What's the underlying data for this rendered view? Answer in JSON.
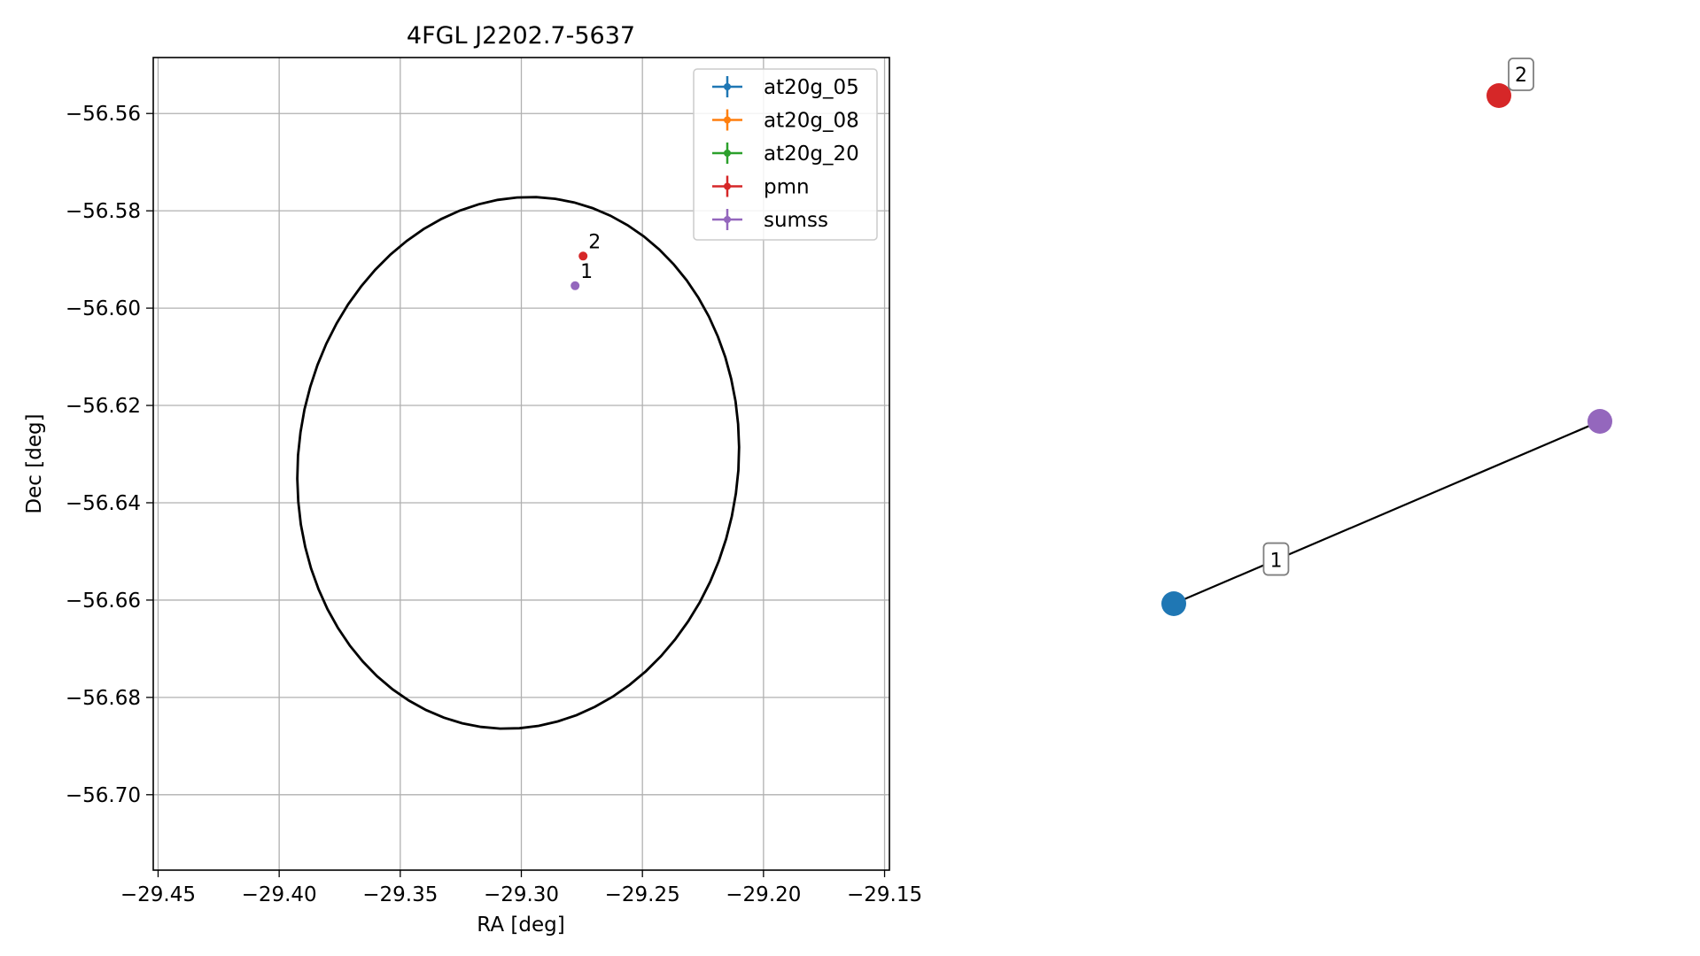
{
  "chart_data": [
    {
      "type": "scatter",
      "title": "4FGL J2202.7-5637",
      "xlabel": "RA [deg]",
      "ylabel": "Dec [deg]",
      "xlim": [
        -29.452,
        -29.148
      ],
      "ylim": [
        -56.7155,
        -56.5485
      ],
      "xticks": [
        -29.45,
        -29.4,
        -29.35,
        -29.3,
        -29.25,
        -29.2,
        -29.15
      ],
      "xtick_labels": [
        "−29.45",
        "−29.40",
        "−29.35",
        "−29.30",
        "−29.25",
        "−29.20",
        "−29.15"
      ],
      "yticks": [
        -56.56,
        -56.58,
        -56.6,
        -56.62,
        -56.64,
        -56.66,
        -56.68,
        -56.7
      ],
      "ytick_labels": [
        "−56.56",
        "−56.58",
        "−56.60",
        "−56.62",
        "−56.64",
        "−56.66",
        "−56.68",
        "−56.70"
      ],
      "grid": true,
      "legend_position": "top-right",
      "legend": [
        {
          "name": "at20g_05",
          "color": "#1f77b4"
        },
        {
          "name": "at20g_08",
          "color": "#ff7f0e"
        },
        {
          "name": "at20g_20",
          "color": "#2ca02c"
        },
        {
          "name": "pmn",
          "color": "#d62728"
        },
        {
          "name": "sumss",
          "color": "#9467bd"
        }
      ],
      "points": [
        {
          "label": "2",
          "x": -29.2745,
          "y": -56.5893,
          "color": "#d62728"
        },
        {
          "label": "1",
          "x": -29.2778,
          "y": -56.5954,
          "color": "#9467bd"
        }
      ],
      "ellipse": {
        "center_x": -29.3013,
        "center_y": -56.6318,
        "semi_x": 0.0908,
        "semi_y": 0.0548,
        "tilt_deg": 8,
        "color": "#000000"
      }
    },
    {
      "type": "network",
      "nodes": [
        {
          "id": "blue",
          "color": "#1f77b4"
        },
        {
          "id": "purple",
          "color": "#9467bd"
        },
        {
          "id": "red",
          "color": "#d62728"
        }
      ],
      "edges": [
        {
          "from": "blue",
          "to": "purple",
          "label": "1"
        }
      ],
      "node_labels": [
        {
          "node": "red",
          "label": "2"
        }
      ]
    }
  ]
}
